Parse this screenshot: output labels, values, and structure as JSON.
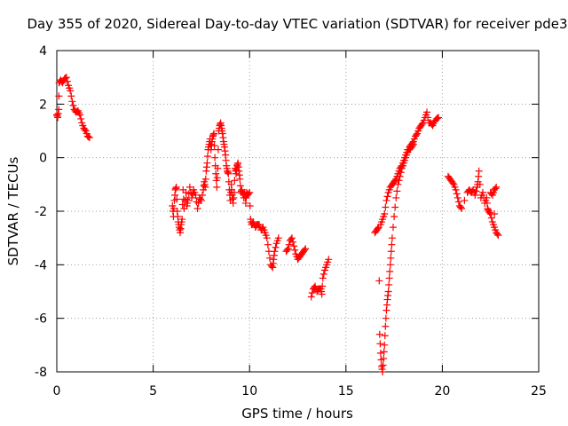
{
  "chart_data": {
    "type": "scatter",
    "title": "Day 355 of 2020, Sidereal Day-to-day VTEC variation (SDTVAR) for receiver pde3",
    "xlabel": "GPS time / hours",
    "ylabel": "SDTVAR / TECUs",
    "xlim": [
      0,
      25
    ],
    "ylim": [
      -8,
      4
    ],
    "x_ticks": [
      0,
      5,
      10,
      15,
      20,
      25
    ],
    "y_ticks": [
      -8,
      -6,
      -4,
      -2,
      0,
      2,
      4
    ],
    "x_tick_labels": [
      "0",
      "5",
      "10",
      "15",
      "20",
      "25"
    ],
    "y_tick_labels": [
      "-8",
      "-6",
      "-4",
      "-2",
      "0",
      "2",
      "4"
    ],
    "grid": true,
    "marker": "+",
    "color": "#ff0000",
    "series": [
      {
        "name": "pde3",
        "segments": [
          [
            [
              0.0,
              1.6
            ],
            [
              0.05,
              1.5
            ],
            [
              0.1,
              1.8
            ],
            [
              0.12,
              2.8
            ],
            [
              0.2,
              2.9
            ],
            [
              0.3,
              2.8
            ],
            [
              0.4,
              2.95
            ],
            [
              0.5,
              3.0
            ],
            [
              0.6,
              2.7
            ],
            [
              0.7,
              2.5
            ],
            [
              0.8,
              2.1
            ],
            [
              0.9,
              1.8
            ],
            [
              1.0,
              1.7
            ],
            [
              1.1,
              1.75
            ],
            [
              1.2,
              1.6
            ],
            [
              1.3,
              1.3
            ],
            [
              1.4,
              1.1
            ],
            [
              1.5,
              1.0
            ],
            [
              1.6,
              0.8
            ],
            [
              1.7,
              0.75
            ]
          ],
          [
            [
              6.0,
              -1.8
            ],
            [
              6.05,
              -2.2
            ],
            [
              6.1,
              -1.6
            ],
            [
              6.15,
              -1.2
            ],
            [
              6.2,
              -1.1
            ],
            [
              6.25,
              -2.0
            ],
            [
              6.3,
              -2.4
            ],
            [
              6.35,
              -2.6
            ],
            [
              6.4,
              -2.8
            ],
            [
              6.45,
              -2.5
            ],
            [
              6.5,
              -2.3
            ],
            [
              6.55,
              -1.2
            ],
            [
              6.6,
              -1.9
            ],
            [
              6.7,
              -1.3
            ],
            [
              6.75,
              -1.8
            ],
            [
              6.8,
              -1.6
            ],
            [
              6.9,
              -1.1
            ],
            [
              7.0,
              -1.5
            ],
            [
              7.1,
              -1.2
            ],
            [
              7.2,
              -1.4
            ],
            [
              7.3,
              -1.9
            ],
            [
              7.4,
              -1.5
            ],
            [
              7.5,
              -1.6
            ],
            [
              7.6,
              -1.2
            ],
            [
              7.65,
              -0.9
            ],
            [
              7.7,
              -1.1
            ],
            [
              7.75,
              -0.5
            ],
            [
              7.8,
              -0.2
            ],
            [
              7.85,
              0.3
            ],
            [
              7.9,
              0.5
            ],
            [
              7.95,
              0.7
            ],
            [
              8.0,
              0.3
            ],
            [
              8.05,
              0.6
            ],
            [
              8.1,
              0.8
            ],
            [
              8.15,
              0.9
            ],
            [
              8.2,
              0.0
            ],
            [
              8.25,
              -0.6
            ],
            [
              8.3,
              -1.1
            ],
            [
              8.35,
              -0.4
            ],
            [
              8.4,
              1.0
            ],
            [
              8.45,
              1.2
            ],
            [
              8.5,
              1.3
            ],
            [
              8.55,
              1.1
            ],
            [
              8.6,
              0.9
            ],
            [
              8.65,
              0.6
            ],
            [
              8.7,
              0.4
            ],
            [
              8.75,
              0.1
            ],
            [
              8.8,
              -0.3
            ],
            [
              8.85,
              -0.5
            ],
            [
              8.9,
              -0.6
            ],
            [
              8.95,
              -1.2
            ],
            [
              9.0,
              -1.6
            ],
            [
              9.05,
              -1.0
            ],
            [
              9.1,
              -1.4
            ],
            [
              9.15,
              -1.7
            ],
            [
              9.2,
              -1.3
            ],
            [
              9.25,
              -0.4
            ],
            [
              9.3,
              -0.6
            ],
            [
              9.35,
              -0.3
            ],
            [
              9.4,
              -0.2
            ],
            [
              9.45,
              -0.5
            ],
            [
              9.5,
              -0.8
            ],
            [
              9.55,
              -1.3
            ],
            [
              9.6,
              -1.2
            ],
            [
              9.7,
              -1.5
            ],
            [
              9.75,
              -1.3
            ],
            [
              9.8,
              -1.7
            ],
            [
              9.85,
              -1.3
            ],
            [
              9.9,
              -1.4
            ],
            [
              10.0,
              -1.3
            ],
            [
              10.05,
              -2.3
            ],
            [
              10.1,
              -2.5
            ],
            [
              10.2,
              -2.4
            ],
            [
              10.3,
              -2.6
            ],
            [
              10.4,
              -2.5
            ],
            [
              10.5,
              -2.5
            ],
            [
              10.6,
              -2.7
            ],
            [
              10.7,
              -2.6
            ],
            [
              10.8,
              -2.8
            ],
            [
              10.9,
              -3.0
            ],
            [
              11.0,
              -3.5
            ],
            [
              11.1,
              -4.0
            ],
            [
              11.2,
              -4.1
            ],
            [
              11.25,
              -3.8
            ],
            [
              11.3,
              -3.5
            ],
            [
              11.4,
              -3.2
            ],
            [
              11.5,
              -3.0
            ]
          ],
          [
            [
              11.9,
              -3.5
            ],
            [
              12.0,
              -3.4
            ],
            [
              12.1,
              -3.1
            ],
            [
              12.2,
              -3.0
            ],
            [
              12.3,
              -3.3
            ],
            [
              12.4,
              -3.6
            ],
            [
              12.5,
              -3.8
            ],
            [
              12.6,
              -3.7
            ],
            [
              12.7,
              -3.6
            ],
            [
              12.8,
              -3.5
            ],
            [
              12.9,
              -3.4
            ]
          ],
          [
            [
              13.2,
              -5.2
            ],
            [
              13.3,
              -4.9
            ],
            [
              13.4,
              -4.8
            ],
            [
              13.5,
              -5.0
            ],
            [
              13.6,
              -4.9
            ],
            [
              13.7,
              -4.9
            ],
            [
              13.75,
              -5.1
            ],
            [
              13.8,
              -4.5
            ],
            [
              13.9,
              -4.2
            ],
            [
              14.0,
              -4.0
            ],
            [
              14.1,
              -3.8
            ]
          ],
          [
            [
              16.5,
              -2.8
            ],
            [
              16.6,
              -2.7
            ],
            [
              16.7,
              -2.6
            ],
            [
              16.75,
              -6.6
            ],
            [
              16.8,
              -7.3
            ],
            [
              16.85,
              -7.8
            ],
            [
              16.9,
              -8.0
            ],
            [
              16.95,
              -7.5
            ],
            [
              17.0,
              -7.0
            ],
            [
              17.05,
              -6.3
            ],
            [
              17.1,
              -5.7
            ],
            [
              17.15,
              -5.3
            ],
            [
              17.2,
              -5.0
            ],
            [
              17.25,
              -4.5
            ],
            [
              17.3,
              -4.0
            ],
            [
              17.35,
              -3.5
            ],
            [
              17.4,
              -3.0
            ],
            [
              17.5,
              -2.2
            ],
            [
              17.6,
              -1.5
            ],
            [
              17.7,
              -1.0
            ],
            [
              17.8,
              -0.7
            ],
            [
              17.9,
              -0.4
            ],
            [
              18.0,
              -0.2
            ],
            [
              18.1,
              0.0
            ],
            [
              18.2,
              0.2
            ],
            [
              18.3,
              0.4
            ],
            [
              18.4,
              0.5
            ],
            [
              18.5,
              0.6
            ],
            [
              18.6,
              0.8
            ],
            [
              18.7,
              0.9
            ],
            [
              18.8,
              1.1
            ],
            [
              18.9,
              1.2
            ],
            [
              19.0,
              1.3
            ],
            [
              19.1,
              1.5
            ],
            [
              19.2,
              1.7
            ],
            [
              19.3,
              1.3
            ],
            [
              19.4,
              1.3
            ],
            [
              19.5,
              1.2
            ],
            [
              19.6,
              1.35
            ],
            [
              19.7,
              1.45
            ],
            [
              19.8,
              1.5
            ]
          ],
          [
            [
              16.8,
              -2.5
            ],
            [
              16.9,
              -2.3
            ],
            [
              17.0,
              -2.1
            ],
            [
              17.1,
              -1.6
            ],
            [
              17.2,
              -1.3
            ],
            [
              17.3,
              -1.1
            ],
            [
              17.4,
              -1.0
            ],
            [
              17.5,
              -0.9
            ],
            [
              17.6,
              -0.8
            ],
            [
              17.7,
              -0.6
            ],
            [
              17.8,
              -0.4
            ],
            [
              17.9,
              -0.3
            ],
            [
              18.0,
              -0.1
            ],
            [
              18.1,
              0.1
            ],
            [
              18.2,
              0.3
            ],
            [
              18.3,
              0.3
            ],
            [
              18.4,
              0.4
            ],
            [
              18.5,
              0.5
            ]
          ],
          [
            [
              20.3,
              -0.7
            ],
            [
              20.4,
              -0.8
            ],
            [
              20.5,
              -0.9
            ],
            [
              20.6,
              -1.0
            ],
            [
              20.7,
              -1.2
            ],
            [
              20.8,
              -1.5
            ],
            [
              20.9,
              -1.8
            ],
            [
              21.0,
              -1.9
            ],
            [
              21.3,
              -1.3
            ],
            [
              21.4,
              -1.2
            ],
            [
              21.5,
              -1.3
            ],
            [
              21.6,
              -1.2
            ],
            [
              21.7,
              -1.4
            ],
            [
              21.8,
              -1.1
            ],
            [
              21.85,
              -0.9
            ],
            [
              21.9,
              -0.5
            ],
            [
              22.0,
              -1.5
            ],
            [
              22.1,
              -1.3
            ],
            [
              22.2,
              -1.7
            ],
            [
              22.3,
              -1.5
            ],
            [
              22.35,
              -1.9
            ],
            [
              22.4,
              -2.0
            ],
            [
              22.5,
              -2.1
            ],
            [
              22.6,
              -2.4
            ],
            [
              22.7,
              -2.6
            ],
            [
              22.8,
              -2.8
            ],
            [
              22.9,
              -2.9
            ],
            [
              22.5,
              -1.3
            ],
            [
              22.6,
              -1.4
            ],
            [
              22.7,
              -1.2
            ],
            [
              22.8,
              -1.1
            ]
          ]
        ]
      }
    ]
  }
}
